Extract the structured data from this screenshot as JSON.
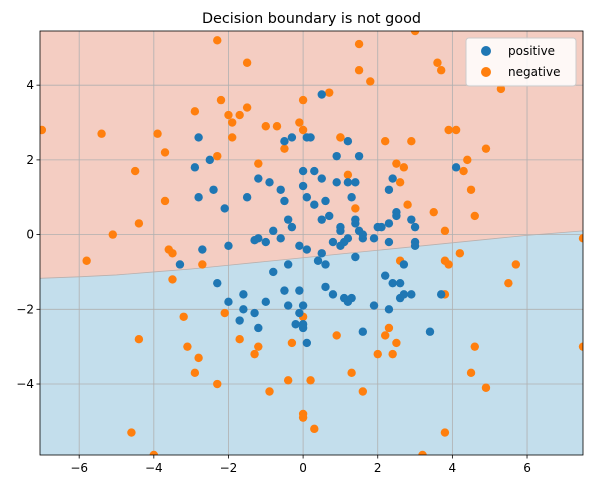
{
  "chart_data": {
    "type": "scatter",
    "title": "Decision boundary is not good",
    "xlabel": "",
    "ylabel": "",
    "xlim": [
      -7.05,
      7.5
    ],
    "ylim": [
      -5.9,
      5.45
    ],
    "x_ticks": [
      -6,
      -4,
      -2,
      0,
      2,
      4,
      6
    ],
    "y_ticks": [
      -4,
      -2,
      0,
      2,
      4
    ],
    "grid": true,
    "legend_position": "top-right",
    "background_regions": {
      "upper_region_color": "#f4cdc2",
      "lower_region_color": "#c3deec",
      "boundary": [
        [
          -7.05,
          -1.17
        ],
        [
          -6.0,
          -1.13
        ],
        [
          -5.0,
          -1.08
        ],
        [
          -4.0,
          -1.0
        ],
        [
          -3.0,
          -0.92
        ],
        [
          -2.0,
          -0.82
        ],
        [
          -1.0,
          -0.72
        ],
        [
          0.0,
          -0.62
        ],
        [
          1.0,
          -0.52
        ],
        [
          2.0,
          -0.42
        ],
        [
          3.0,
          -0.32
        ],
        [
          4.0,
          -0.22
        ],
        [
          5.0,
          -0.12
        ],
        [
          6.0,
          -0.02
        ],
        [
          7.5,
          0.1
        ]
      ]
    },
    "series": [
      {
        "name": "positive",
        "color": "#1f77b4",
        "points": [
          [
            -2.8,
            2.6
          ],
          [
            -2.8,
            1.0
          ],
          [
            -2.9,
            1.8
          ],
          [
            -2.7,
            -0.4
          ],
          [
            -3.3,
            -0.8
          ],
          [
            -2.5,
            2.0
          ],
          [
            -2.4,
            1.2
          ],
          [
            -2.1,
            0.7
          ],
          [
            -2.0,
            -0.3
          ],
          [
            -2.3,
            -1.3
          ],
          [
            -2.0,
            -1.8
          ],
          [
            -1.6,
            -1.6
          ],
          [
            -1.7,
            -2.3
          ],
          [
            -1.6,
            -2.0
          ],
          [
            -1.3,
            -2.1
          ],
          [
            -1.2,
            -2.5
          ],
          [
            -1.0,
            -1.8
          ],
          [
            -1.5,
            1.0
          ],
          [
            -1.2,
            1.5
          ],
          [
            -0.9,
            1.4
          ],
          [
            -0.6,
            1.2
          ],
          [
            -0.5,
            2.5
          ],
          [
            -0.3,
            2.6
          ],
          [
            -0.5,
            0.9
          ],
          [
            -0.4,
            0.4
          ],
          [
            -0.6,
            -0.1
          ],
          [
            -0.3,
            0.2
          ],
          [
            -0.8,
            0.1
          ],
          [
            -1.2,
            -0.1
          ],
          [
            -1.0,
            -0.2
          ],
          [
            0.0,
            1.7
          ],
          [
            0.1,
            1.0
          ],
          [
            0.3,
            1.7
          ],
          [
            0.5,
            1.5
          ],
          [
            0.0,
            1.3
          ],
          [
            0.2,
            2.6
          ],
          [
            0.5,
            3.75
          ],
          [
            0.1,
            2.6
          ],
          [
            0.3,
            0.8
          ],
          [
            0.5,
            0.4
          ],
          [
            0.6,
            0.9
          ],
          [
            0.7,
            0.5
          ],
          [
            0.8,
            -0.2
          ],
          [
            0.5,
            -0.5
          ],
          [
            0.4,
            -0.7
          ],
          [
            0.6,
            -0.8
          ],
          [
            0.1,
            -0.4
          ],
          [
            -0.1,
            -0.3
          ],
          [
            -0.4,
            -0.8
          ],
          [
            -0.5,
            -1.5
          ],
          [
            -0.4,
            -1.9
          ],
          [
            -0.1,
            -1.5
          ],
          [
            0.0,
            -2.5
          ],
          [
            -0.1,
            -2.1
          ],
          [
            0.0,
            -2.4
          ],
          [
            -0.2,
            -2.4
          ],
          [
            0.1,
            -2.9
          ],
          [
            0.0,
            -1.9
          ],
          [
            0.6,
            -1.4
          ],
          [
            0.8,
            -1.6
          ],
          [
            1.1,
            -1.7
          ],
          [
            1.2,
            -1.8
          ],
          [
            1.3,
            -1.7
          ],
          [
            1.6,
            -2.6
          ],
          [
            1.9,
            -1.9
          ],
          [
            2.3,
            -2.0
          ],
          [
            2.6,
            -1.7
          ],
          [
            2.4,
            -1.3
          ],
          [
            2.7,
            -1.6
          ],
          [
            2.9,
            -1.6
          ],
          [
            2.6,
            -1.3
          ],
          [
            2.2,
            -1.1
          ],
          [
            3.4,
            -2.6
          ],
          [
            3.7,
            -1.6
          ],
          [
            2.7,
            -0.8
          ],
          [
            3.0,
            -0.2
          ],
          [
            3.0,
            -0.3
          ],
          [
            2.5,
            0.5
          ],
          [
            2.3,
            0.3
          ],
          [
            2.1,
            0.2
          ],
          [
            2.3,
            -0.2
          ],
          [
            2.0,
            0.2
          ],
          [
            1.9,
            -0.1
          ],
          [
            1.6,
            -0.1
          ],
          [
            1.5,
            0.1
          ],
          [
            1.4,
            0.3
          ],
          [
            1.4,
            -0.6
          ],
          [
            1.2,
            -0.1
          ],
          [
            1.1,
            -0.2
          ],
          [
            1.0,
            -0.3
          ],
          [
            1.0,
            0.2
          ],
          [
            1.4,
            0.4
          ],
          [
            1.2,
            1.4
          ],
          [
            1.4,
            1.4
          ],
          [
            1.3,
            1.0
          ],
          [
            1.5,
            2.1
          ],
          [
            1.2,
            2.5
          ],
          [
            0.9,
            2.1
          ],
          [
            2.4,
            1.5
          ],
          [
            2.3,
            1.2
          ],
          [
            2.5,
            0.6
          ],
          [
            2.9,
            0.4
          ],
          [
            3.0,
            0.2
          ],
          [
            4.1,
            1.8
          ],
          [
            1.6,
            0.0
          ],
          [
            0.9,
            1.4
          ],
          [
            -1.3,
            -0.15
          ],
          [
            -0.8,
            -1.0
          ],
          [
            1.0,
            0.1
          ]
        ]
      },
      {
        "name": "negative",
        "color": "#ff7f0e",
        "points": [
          [
            -7.0,
            2.8
          ],
          [
            -5.4,
            2.7
          ],
          [
            -4.5,
            1.7
          ],
          [
            -4.4,
            0.3
          ],
          [
            -3.9,
            2.7
          ],
          [
            -3.7,
            2.2
          ],
          [
            -3.7,
            0.9
          ],
          [
            -3.6,
            -0.4
          ],
          [
            -3.5,
            -0.5
          ],
          [
            -3.5,
            -1.2
          ],
          [
            -3.2,
            -2.2
          ],
          [
            -3.1,
            -3.0
          ],
          [
            -2.8,
            -3.3
          ],
          [
            -2.9,
            -3.7
          ],
          [
            -2.7,
            -0.8
          ],
          [
            -2.3,
            2.1
          ],
          [
            -2.2,
            3.6
          ],
          [
            -2.3,
            5.2
          ],
          [
            -1.9,
            3.0
          ],
          [
            -2.0,
            3.2
          ],
          [
            -1.7,
            3.2
          ],
          [
            -1.5,
            3.4
          ],
          [
            -1.5,
            4.6
          ],
          [
            -1.9,
            2.6
          ],
          [
            -1.2,
            1.9
          ],
          [
            -1.0,
            2.9
          ],
          [
            -0.5,
            2.3
          ],
          [
            -0.1,
            3.0
          ],
          [
            0.0,
            2.8
          ],
          [
            0.0,
            3.6
          ],
          [
            0.7,
            3.8
          ],
          [
            1.0,
            2.6
          ],
          [
            1.2,
            1.6
          ],
          [
            1.4,
            0.7
          ],
          [
            1.5,
            4.4
          ],
          [
            1.5,
            5.1
          ],
          [
            1.8,
            4.1
          ],
          [
            2.2,
            2.5
          ],
          [
            2.5,
            1.9
          ],
          [
            2.7,
            1.8
          ],
          [
            2.6,
            1.4
          ],
          [
            2.8,
            0.8
          ],
          [
            2.9,
            2.5
          ],
          [
            3.0,
            5.45
          ],
          [
            3.5,
            0.6
          ],
          [
            3.6,
            4.6
          ],
          [
            3.7,
            4.4
          ],
          [
            3.8,
            0.1
          ],
          [
            3.9,
            2.8
          ],
          [
            4.1,
            2.8
          ],
          [
            4.3,
            1.7
          ],
          [
            4.4,
            2.0
          ],
          [
            4.5,
            1.2
          ],
          [
            4.6,
            0.5
          ],
          [
            4.2,
            -0.5
          ],
          [
            3.9,
            -0.8
          ],
          [
            3.8,
            -1.6
          ],
          [
            4.9,
            2.3
          ],
          [
            5.3,
            3.9
          ],
          [
            5.5,
            -1.3
          ],
          [
            5.7,
            -0.8
          ],
          [
            7.5,
            -0.1
          ],
          [
            7.5,
            -3.0
          ],
          [
            4.9,
            -4.1
          ],
          [
            4.6,
            -3.0
          ],
          [
            4.5,
            -3.7
          ],
          [
            3.8,
            -5.3
          ],
          [
            3.2,
            -5.9
          ],
          [
            2.5,
            -2.9
          ],
          [
            2.3,
            -2.5
          ],
          [
            2.4,
            -3.2
          ],
          [
            2.0,
            -3.2
          ],
          [
            1.6,
            -4.2
          ],
          [
            1.3,
            -3.7
          ],
          [
            0.9,
            -2.7
          ],
          [
            0.2,
            -3.9
          ],
          [
            0.3,
            -5.2
          ],
          [
            0.0,
            -4.8
          ],
          [
            0.0,
            -4.9
          ],
          [
            0.0,
            -2.2
          ],
          [
            -0.3,
            -2.9
          ],
          [
            -0.4,
            -3.9
          ],
          [
            -0.9,
            -4.2
          ],
          [
            -1.2,
            -3.0
          ],
          [
            -1.3,
            -3.2
          ],
          [
            -1.7,
            -2.8
          ],
          [
            -2.1,
            -2.1
          ],
          [
            -2.3,
            -4.0
          ],
          [
            -4.4,
            -2.8
          ],
          [
            -4.6,
            -5.3
          ],
          [
            -4.0,
            -5.9
          ],
          [
            -5.1,
            0.0
          ],
          [
            -5.8,
            -0.7
          ],
          [
            -2.9,
            3.3
          ],
          [
            2.6,
            -0.7
          ],
          [
            1.0,
            2.6
          ],
          [
            2.2,
            -2.7
          ],
          [
            -0.7,
            2.9
          ],
          [
            3.8,
            -0.7
          ]
        ]
      }
    ]
  }
}
